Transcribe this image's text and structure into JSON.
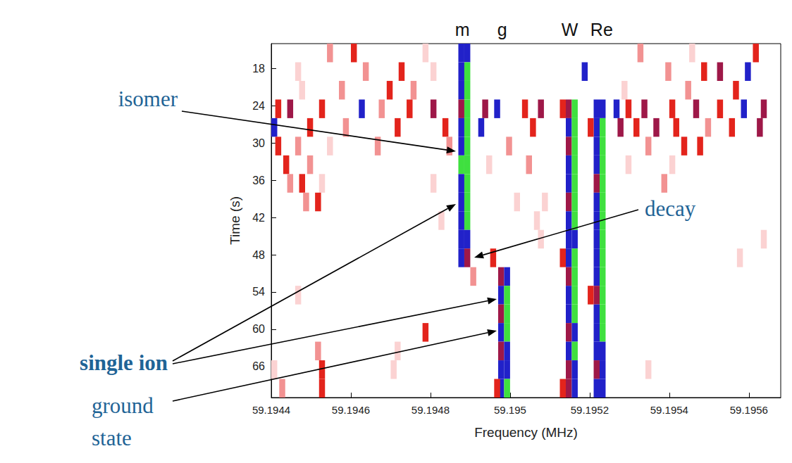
{
  "chart_data": {
    "type": "heatmap",
    "xlabel": "Frequency (MHz)",
    "ylabel": "Time (s)",
    "xlim": [
      59.1944,
      59.19568
    ],
    "ylim": [
      14,
      71
    ],
    "xticks": [
      59.1944,
      59.1946,
      59.1948,
      59.195,
      59.1952,
      59.1954,
      59.1956
    ],
    "yticks": [
      18,
      24,
      30,
      36,
      42,
      48,
      54,
      60,
      66
    ],
    "grid": false,
    "cell_size": [
      1.5e-05,
      3
    ],
    "zlim": [
      1,
      6
    ],
    "line_labels": [
      {
        "text": "m",
        "x": 59.19488
      },
      {
        "text": "g",
        "x": 59.19498
      },
      {
        "text": "W",
        "x": 59.19515
      },
      {
        "text": "Re",
        "x": 59.19523
      }
    ],
    "annotations": [
      "isomer",
      "single ion",
      "ground state",
      "decay"
    ],
    "cells": [
      [
        59.19487,
        14,
        5
      ],
      [
        59.194885,
        14,
        5
      ],
      [
        59.19487,
        17,
        5
      ],
      [
        59.194885,
        17,
        6
      ],
      [
        59.19487,
        20,
        5
      ],
      [
        59.194885,
        20,
        6
      ],
      [
        59.19487,
        23,
        4
      ],
      [
        59.194885,
        23,
        6
      ],
      [
        59.19487,
        26,
        5
      ],
      [
        59.194885,
        26,
        6
      ],
      [
        59.19487,
        29,
        5
      ],
      [
        59.194885,
        29,
        6
      ],
      [
        59.19487,
        32,
        6
      ],
      [
        59.194885,
        32,
        6
      ],
      [
        59.19487,
        35,
        5
      ],
      [
        59.194885,
        35,
        6
      ],
      [
        59.19487,
        38,
        5
      ],
      [
        59.194885,
        38,
        6
      ],
      [
        59.19487,
        41,
        5
      ],
      [
        59.194885,
        41,
        6
      ],
      [
        59.19487,
        44,
        5
      ],
      [
        59.194885,
        44,
        5
      ],
      [
        59.19487,
        47,
        5
      ],
      [
        59.194885,
        47,
        4
      ],
      [
        59.19497,
        50,
        4
      ],
      [
        59.194985,
        50,
        5
      ],
      [
        59.19497,
        53,
        5
      ],
      [
        59.194985,
        53,
        6
      ],
      [
        59.19497,
        56,
        4
      ],
      [
        59.194985,
        56,
        6
      ],
      [
        59.19497,
        59,
        5
      ],
      [
        59.194985,
        59,
        6
      ],
      [
        59.19497,
        62,
        4
      ],
      [
        59.194985,
        62,
        5
      ],
      [
        59.19497,
        65,
        5
      ],
      [
        59.194985,
        65,
        5
      ],
      [
        59.19497,
        68,
        5
      ],
      [
        59.194985,
        68,
        6
      ],
      [
        59.19514,
        23,
        4
      ],
      [
        59.195155,
        23,
        6
      ],
      [
        59.19514,
        26,
        5
      ],
      [
        59.195155,
        26,
        6
      ],
      [
        59.19514,
        29,
        4
      ],
      [
        59.195155,
        29,
        6
      ],
      [
        59.19514,
        32,
        5
      ],
      [
        59.195155,
        32,
        6
      ],
      [
        59.19514,
        35,
        5
      ],
      [
        59.195155,
        35,
        6
      ],
      [
        59.19514,
        38,
        4
      ],
      [
        59.195155,
        38,
        6
      ],
      [
        59.19514,
        41,
        5
      ],
      [
        59.195155,
        41,
        6
      ],
      [
        59.19514,
        44,
        5
      ],
      [
        59.195155,
        44,
        5
      ],
      [
        59.19514,
        47,
        5
      ],
      [
        59.195155,
        47,
        6
      ],
      [
        59.19514,
        50,
        4
      ],
      [
        59.195155,
        50,
        6
      ],
      [
        59.19514,
        53,
        5
      ],
      [
        59.195155,
        53,
        6
      ],
      [
        59.19514,
        56,
        5
      ],
      [
        59.195155,
        56,
        6
      ],
      [
        59.19514,
        59,
        4
      ],
      [
        59.195155,
        59,
        5
      ],
      [
        59.19514,
        62,
        5
      ],
      [
        59.195155,
        62,
        6
      ],
      [
        59.19514,
        65,
        4
      ],
      [
        59.195155,
        65,
        5
      ],
      [
        59.19514,
        68,
        4
      ],
      [
        59.195155,
        68,
        5
      ],
      [
        59.19521,
        23,
        5
      ],
      [
        59.195225,
        23,
        5
      ],
      [
        59.19521,
        26,
        5
      ],
      [
        59.195225,
        26,
        6
      ],
      [
        59.19521,
        29,
        5
      ],
      [
        59.195225,
        29,
        6
      ],
      [
        59.19521,
        32,
        5
      ],
      [
        59.195225,
        32,
        6
      ],
      [
        59.19521,
        35,
        4
      ],
      [
        59.195225,
        35,
        6
      ],
      [
        59.19521,
        38,
        5
      ],
      [
        59.195225,
        38,
        6
      ],
      [
        59.19521,
        41,
        5
      ],
      [
        59.195225,
        41,
        6
      ],
      [
        59.19521,
        44,
        5
      ],
      [
        59.195225,
        44,
        6
      ],
      [
        59.19521,
        47,
        5
      ],
      [
        59.195225,
        47,
        6
      ],
      [
        59.19521,
        50,
        5
      ],
      [
        59.195225,
        50,
        6
      ],
      [
        59.19521,
        53,
        4
      ],
      [
        59.195225,
        53,
        6
      ],
      [
        59.19521,
        56,
        5
      ],
      [
        59.195225,
        56,
        6
      ],
      [
        59.19521,
        59,
        5
      ],
      [
        59.195225,
        59,
        6
      ],
      [
        59.19521,
        62,
        5
      ],
      [
        59.195225,
        62,
        5
      ],
      [
        59.19521,
        65,
        4
      ],
      [
        59.195225,
        65,
        5
      ],
      [
        59.19521,
        68,
        5
      ],
      [
        59.195225,
        68,
        5
      ],
      [
        59.195125,
        23,
        3
      ],
      [
        59.195125,
        47,
        3
      ],
      [
        59.195125,
        68,
        3
      ],
      [
        59.195195,
        26,
        3
      ],
      [
        59.195195,
        53,
        3
      ],
      [
        59.19454,
        14,
        2
      ],
      [
        59.1946,
        14,
        3
      ],
      [
        59.19478,
        14,
        1
      ],
      [
        59.19532,
        14,
        2
      ],
      [
        59.19545,
        14,
        1
      ],
      [
        59.19561,
        14,
        3
      ],
      [
        59.19446,
        17,
        1
      ],
      [
        59.19463,
        17,
        2
      ],
      [
        59.19472,
        17,
        3
      ],
      [
        59.1948,
        17,
        1
      ],
      [
        59.19518,
        17,
        5
      ],
      [
        59.19539,
        17,
        2
      ],
      [
        59.19548,
        17,
        3
      ],
      [
        59.19552,
        17,
        4
      ],
      [
        59.19559,
        17,
        5
      ],
      [
        59.19447,
        20,
        1
      ],
      [
        59.19457,
        20,
        2
      ],
      [
        59.19469,
        20,
        3
      ],
      [
        59.19475,
        20,
        2
      ],
      [
        59.19528,
        20,
        1
      ],
      [
        59.19544,
        20,
        2
      ],
      [
        59.19556,
        20,
        3
      ],
      [
        59.19441,
        23,
        3
      ],
      [
        59.19444,
        23,
        4
      ],
      [
        59.19452,
        23,
        3
      ],
      [
        59.19462,
        23,
        5
      ],
      [
        59.19467,
        23,
        2
      ],
      [
        59.19474,
        23,
        3
      ],
      [
        59.1948,
        23,
        4
      ],
      [
        59.19493,
        23,
        4
      ],
      [
        59.19496,
        23,
        5
      ],
      [
        59.19503,
        23,
        3
      ],
      [
        59.19507,
        23,
        4
      ],
      [
        59.19526,
        23,
        5
      ],
      [
        59.19529,
        23,
        3
      ],
      [
        59.19533,
        23,
        4
      ],
      [
        59.1954,
        23,
        3
      ],
      [
        59.19546,
        23,
        4
      ],
      [
        59.19552,
        23,
        3
      ],
      [
        59.19558,
        23,
        5
      ],
      [
        59.19563,
        23,
        4
      ],
      [
        59.1944,
        26,
        5
      ],
      [
        59.19449,
        26,
        3
      ],
      [
        59.19458,
        26,
        2
      ],
      [
        59.19471,
        26,
        3
      ],
      [
        59.19483,
        26,
        3
      ],
      [
        59.19492,
        26,
        5
      ],
      [
        59.19505,
        26,
        3
      ],
      [
        59.19527,
        26,
        4
      ],
      [
        59.19531,
        26,
        3
      ],
      [
        59.19536,
        26,
        4
      ],
      [
        59.19541,
        26,
        3
      ],
      [
        59.19549,
        26,
        2
      ],
      [
        59.19555,
        26,
        3
      ],
      [
        59.19562,
        26,
        4
      ],
      [
        59.19441,
        29,
        3
      ],
      [
        59.19446,
        29,
        2
      ],
      [
        59.19454,
        29,
        1
      ],
      [
        59.19466,
        29,
        2
      ],
      [
        59.19484,
        29,
        2
      ],
      [
        59.19499,
        29,
        2
      ],
      [
        59.19534,
        29,
        2
      ],
      [
        59.19543,
        29,
        3
      ],
      [
        59.19547,
        29,
        3
      ],
      [
        59.19443,
        32,
        3
      ],
      [
        59.19449,
        32,
        2
      ],
      [
        59.19494,
        32,
        1
      ],
      [
        59.19504,
        32,
        2
      ],
      [
        59.19529,
        32,
        1
      ],
      [
        59.1954,
        32,
        1
      ],
      [
        59.19444,
        35,
        2
      ],
      [
        59.19447,
        35,
        3
      ],
      [
        59.19452,
        35,
        1
      ],
      [
        59.1948,
        35,
        1
      ],
      [
        59.19538,
        35,
        2
      ],
      [
        59.19448,
        38,
        2
      ],
      [
        59.19451,
        38,
        3
      ],
      [
        59.19501,
        38,
        1
      ],
      [
        59.19508,
        38,
        1
      ],
      [
        59.19482,
        41,
        1
      ],
      [
        59.19506,
        41,
        1
      ],
      [
        59.19507,
        44,
        1
      ],
      [
        59.19563,
        44,
        1
      ],
      [
        59.19495,
        47,
        3
      ],
      [
        59.19557,
        47,
        1
      ],
      [
        59.1949,
        50,
        2
      ],
      [
        59.19446,
        53,
        1
      ],
      [
        59.19478,
        59,
        3
      ],
      [
        59.19451,
        62,
        2
      ],
      [
        59.19471,
        62,
        1
      ],
      [
        59.1944,
        65,
        1
      ],
      [
        59.19452,
        65,
        3
      ],
      [
        59.1947,
        65,
        1
      ],
      [
        59.19534,
        65,
        1
      ],
      [
        59.19442,
        68,
        2
      ],
      [
        59.19452,
        68,
        3
      ],
      [
        59.19496,
        68,
        3
      ]
    ]
  }
}
